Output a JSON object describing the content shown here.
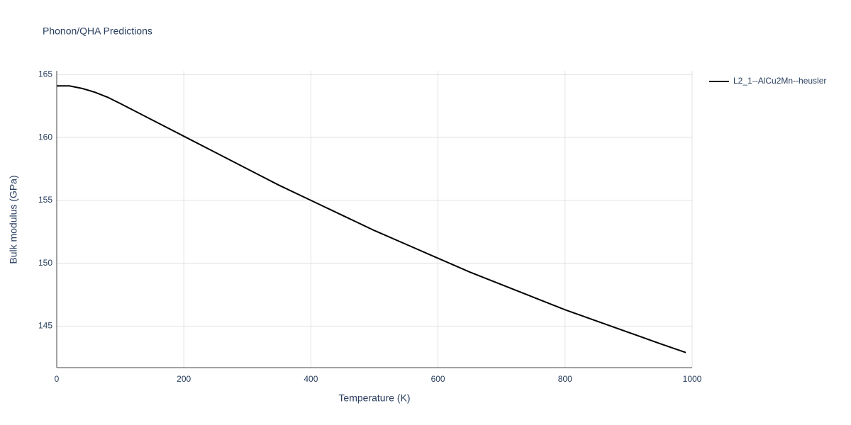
{
  "chart_data": {
    "type": "line",
    "title": "Phonon/QHA Predictions",
    "x_label": "Temperature (K)",
    "y_label": "Bulk modulus (GPa)",
    "x": [
      0,
      20,
      40,
      60,
      80,
      100,
      150,
      200,
      250,
      300,
      350,
      400,
      450,
      500,
      550,
      600,
      650,
      700,
      750,
      800,
      850,
      900,
      950,
      990
    ],
    "series": [
      {
        "name": "L2_1--AlCu2Mn--heusler",
        "color": "#000000",
        "values": [
          164.1,
          164.1,
          163.9,
          163.6,
          163.2,
          162.7,
          161.4,
          160.1,
          158.8,
          157.5,
          156.2,
          155.0,
          153.8,
          152.6,
          151.5,
          150.4,
          149.3,
          148.3,
          147.3,
          146.3,
          145.4,
          144.5,
          143.6,
          142.9
        ]
      }
    ],
    "xlim": [
      0,
      1000
    ],
    "xticks": [
      0,
      200,
      400,
      600,
      800,
      1000
    ],
    "ylim": [
      141.7,
      165.3
    ],
    "yticks": [
      145,
      150,
      155,
      160,
      165
    ],
    "grid": true,
    "legend": "right"
  }
}
